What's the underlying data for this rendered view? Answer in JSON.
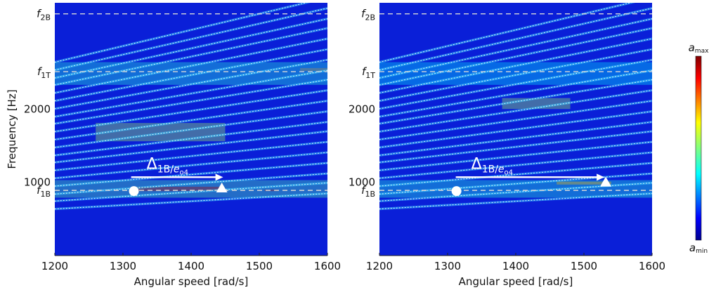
{
  "chart_data": [
    {
      "type": "heatmap",
      "panel": "left",
      "xlabel": "Angular speed [rad/s]",
      "ylabel": "Frequency [Hz]",
      "xlim": [
        1200,
        1600
      ],
      "ylim": [
        0,
        3450
      ],
      "xticks": [
        1200,
        1300,
        1400,
        1500,
        1600
      ],
      "yticks": [
        {
          "label": "1000",
          "value": 1000
        },
        {
          "label": "2000",
          "value": 2000
        }
      ],
      "ref_lines": [
        {
          "sym": "f",
          "sub": "1B",
          "value": 890
        },
        {
          "sym": "f",
          "sub": "1T",
          "value": 2510
        },
        {
          "sym": "f",
          "sub": "2B",
          "value": 3300
        }
      ],
      "annotation": {
        "sym": "Δ",
        "sub_a": "1B/",
        "sub_b": "e",
        "sub_c": "o4",
        "arrow_from_x": 1312,
        "arrow_to_x": 1447,
        "arrow_y": 1070,
        "circle": {
          "x": 1316,
          "y": 880
        },
        "triangle": {
          "x": 1445,
          "y": 920
        }
      },
      "order_slopes": [
        0.53,
        0.62,
        0.7,
        0.79,
        0.88,
        0.97,
        1.06,
        1.14,
        1.23,
        1.32,
        1.41,
        1.5,
        1.58,
        1.67,
        1.76,
        1.85,
        1.94,
        2.02,
        2.11,
        2.2
      ],
      "highlights": [
        {
          "x0": 1200,
          "x1": 1600,
          "y0": 790,
          "y1": 1030,
          "level": 0.45
        },
        {
          "x0": 1316,
          "x1": 1445,
          "y0": 880,
          "y1": 940,
          "level": 0.95
        },
        {
          "x0": 1508,
          "x1": 1528,
          "y0": 880,
          "y1": 900,
          "level": 0.95
        },
        {
          "x0": 1260,
          "x1": 1450,
          "y0": 1560,
          "y1": 1810,
          "level": 0.55
        },
        {
          "x0": 1560,
          "x1": 1600,
          "y0": 2520,
          "y1": 2560,
          "level": 0.8
        },
        {
          "x0": 1200,
          "x1": 1600,
          "y0": 2330,
          "y1": 2640,
          "level": 0.4
        }
      ],
      "colorbar": {
        "max_sym": "a",
        "max_sub": "max",
        "min_sym": "a",
        "min_sub": "min"
      }
    },
    {
      "type": "heatmap",
      "panel": "right",
      "xlabel": "Angular speed [rad/s]",
      "ylabel": "",
      "xlim": [
        1200,
        1600
      ],
      "ylim": [
        0,
        3450
      ],
      "xticks": [
        1200,
        1300,
        1400,
        1500,
        1600
      ],
      "yticks": [
        {
          "label": "1000",
          "value": 1000
        },
        {
          "label": "2000",
          "value": 2000
        }
      ],
      "ref_lines": [
        {
          "sym": "f",
          "sub": "1B",
          "value": 890
        },
        {
          "sym": "f",
          "sub": "1T",
          "value": 2510
        },
        {
          "sym": "f",
          "sub": "2B",
          "value": 3300
        }
      ],
      "annotation": {
        "sym": "Δ",
        "sub_a": "1B/",
        "sub_b": "e",
        "sub_c": "o4",
        "arrow_from_x": 1312,
        "arrow_to_x": 1530,
        "arrow_y": 1070,
        "circle": {
          "x": 1313,
          "y": 880
        },
        "triangle": {
          "x": 1532,
          "y": 1000
        }
      },
      "order_slopes": [
        0.53,
        0.62,
        0.7,
        0.79,
        0.88,
        0.97,
        1.06,
        1.14,
        1.23,
        1.32,
        1.41,
        1.5,
        1.58,
        1.67,
        1.76,
        1.85,
        1.94,
        2.02,
        2.11,
        2.2
      ],
      "highlights": [
        {
          "x0": 1200,
          "x1": 1600,
          "y0": 790,
          "y1": 1030,
          "level": 0.4
        },
        {
          "x0": 1460,
          "x1": 1540,
          "y0": 970,
          "y1": 1010,
          "level": 0.7
        },
        {
          "x0": 1380,
          "x1": 1480,
          "y0": 2000,
          "y1": 2150,
          "level": 0.55
        },
        {
          "x0": 1200,
          "x1": 1600,
          "y0": 2330,
          "y1": 2640,
          "level": 0.35
        }
      ]
    }
  ]
}
